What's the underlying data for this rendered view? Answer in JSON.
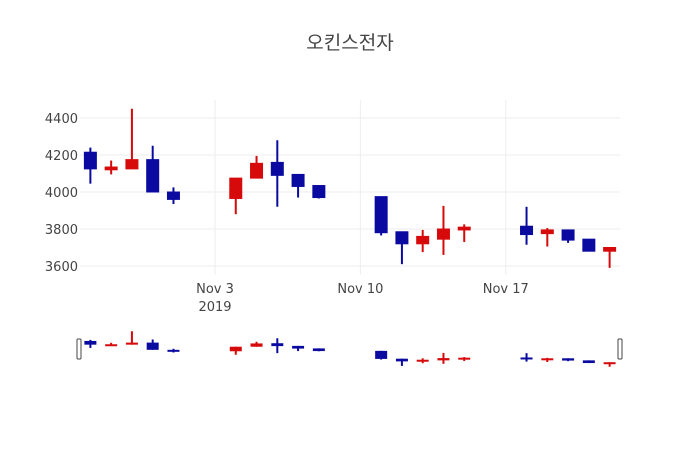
{
  "chart_data": {
    "type": "candlestick",
    "title": "오킨스전자",
    "xlabel": "",
    "ylabel": "",
    "ylim": [
      3560,
      4480
    ],
    "yticks": [
      3600,
      3800,
      4000,
      4200,
      4400
    ],
    "xticks": [
      {
        "date": "2019-11-03",
        "label": "Nov 3",
        "sublabel": "2019"
      },
      {
        "date": "2019-11-10",
        "label": "Nov 10",
        "sublabel": ""
      },
      {
        "date": "2019-11-17",
        "label": "Nov 17",
        "sublabel": ""
      }
    ],
    "xrange": [
      "2019-10-27T12:00",
      "2019-11-22T12:00"
    ],
    "grid": true,
    "legend": false,
    "range_slider": true,
    "colors": {
      "increasing": "#d60a0a",
      "decreasing": "#0a0aa0"
    },
    "series": [
      {
        "date": "2019-10-28",
        "open": 4215,
        "high": 4240,
        "low": 4045,
        "close": 4125
      },
      {
        "date": "2019-10-29",
        "open": 4120,
        "high": 4170,
        "low": 4095,
        "close": 4135
      },
      {
        "date": "2019-10-30",
        "open": 4125,
        "high": 4450,
        "low": 4125,
        "close": 4175
      },
      {
        "date": "2019-10-31",
        "open": 4175,
        "high": 4250,
        "low": 4000,
        "close": 4000
      },
      {
        "date": "2019-11-01",
        "open": 4000,
        "high": 4025,
        "low": 3935,
        "close": 3960
      },
      {
        "date": "2019-11-04",
        "open": 3965,
        "high": 4075,
        "low": 3880,
        "close": 4075
      },
      {
        "date": "2019-11-05",
        "open": 4075,
        "high": 4195,
        "low": 4075,
        "close": 4155
      },
      {
        "date": "2019-11-06",
        "open": 4160,
        "high": 4280,
        "low": 3920,
        "close": 4090
      },
      {
        "date": "2019-11-07",
        "open": 4095,
        "high": 4095,
        "low": 3970,
        "close": 4030
      },
      {
        "date": "2019-11-08",
        "open": 4035,
        "high": 4035,
        "low": 3965,
        "close": 3970
      },
      {
        "date": "2019-11-11",
        "open": 3975,
        "high": 3975,
        "low": 3765,
        "close": 3780
      },
      {
        "date": "2019-11-12",
        "open": 3785,
        "high": 3785,
        "low": 3610,
        "close": 3720
      },
      {
        "date": "2019-11-13",
        "open": 3720,
        "high": 3795,
        "low": 3675,
        "close": 3760
      },
      {
        "date": "2019-11-14",
        "open": 3745,
        "high": 3925,
        "low": 3660,
        "close": 3800
      },
      {
        "date": "2019-11-15",
        "open": 3795,
        "high": 3825,
        "low": 3730,
        "close": 3810
      },
      {
        "date": "2019-11-18",
        "open": 3815,
        "high": 3920,
        "low": 3715,
        "close": 3770
      },
      {
        "date": "2019-11-19",
        "open": 3775,
        "high": 3805,
        "low": 3705,
        "close": 3795
      },
      {
        "date": "2019-11-20",
        "open": 3795,
        "high": 3795,
        "low": 3725,
        "close": 3740
      },
      {
        "date": "2019-11-21",
        "open": 3745,
        "high": 3745,
        "low": 3680,
        "close": 3680
      },
      {
        "date": "2019-11-22",
        "open": 3680,
        "high": 3700,
        "low": 3590,
        "close": 3700
      }
    ]
  }
}
